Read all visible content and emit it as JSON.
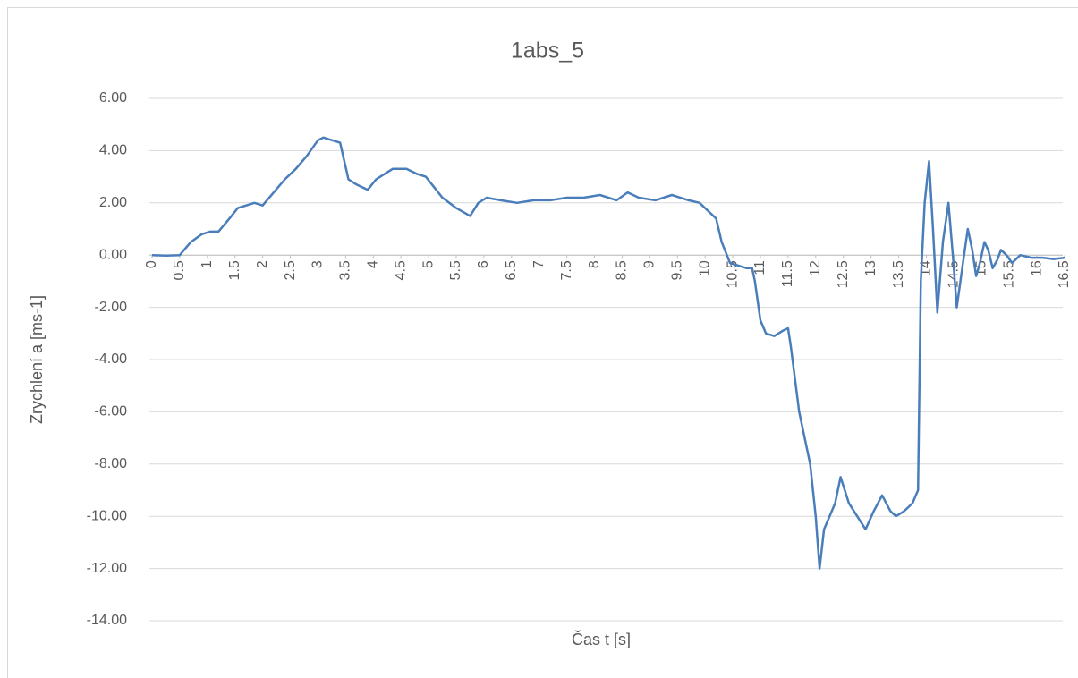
{
  "chart_data": {
    "type": "line",
    "title": "1abs_5",
    "x_label": "Čas t [s]",
    "y_label": "Zrychlení a [ms-1]",
    "xlim": [
      0,
      16.5
    ],
    "xticks": [
      0,
      0.5,
      1,
      1.5,
      2,
      2.5,
      3,
      3.5,
      4,
      4.5,
      5,
      5.5,
      6,
      6.5,
      7,
      7.5,
      8,
      8.5,
      9,
      9.5,
      10,
      10.5,
      11,
      11.5,
      12,
      12.5,
      13,
      13.5,
      14,
      14.5,
      15,
      15.5,
      16,
      16.5
    ],
    "ylim": [
      -14,
      6
    ],
    "yticks": [
      {
        "value": -14,
        "label": "-14.00"
      },
      {
        "value": -12,
        "label": "-12.00"
      },
      {
        "value": -10,
        "label": "-10.00"
      },
      {
        "value": -8,
        "label": "-8.00"
      },
      {
        "value": -6,
        "label": "-6.00"
      },
      {
        "value": -4,
        "label": "-4.00"
      },
      {
        "value": -2,
        "label": "-2.00"
      },
      {
        "value": 0,
        "label": "0.00"
      },
      {
        "value": 2,
        "label": "2.00"
      },
      {
        "value": 4,
        "label": "4.00"
      },
      {
        "value": 6,
        "label": "6.00"
      }
    ],
    "grid": true,
    "x": [
      0,
      0.25,
      0.5,
      0.7,
      0.9,
      1.05,
      1.2,
      1.4,
      1.55,
      1.7,
      1.85,
      2.0,
      2.2,
      2.4,
      2.6,
      2.8,
      3.0,
      3.1,
      3.25,
      3.4,
      3.55,
      3.7,
      3.9,
      4.05,
      4.2,
      4.35,
      4.6,
      4.8,
      4.95,
      5.1,
      5.25,
      5.5,
      5.75,
      5.9,
      6.05,
      6.3,
      6.6,
      6.9,
      7.2,
      7.5,
      7.8,
      8.1,
      8.4,
      8.6,
      8.8,
      9.1,
      9.4,
      9.7,
      9.9,
      10.05,
      10.2,
      10.3,
      10.45,
      10.6,
      10.75,
      10.85,
      10.9,
      11.0,
      11.1,
      11.25,
      11.4,
      11.5,
      11.55,
      11.7,
      11.9,
      12.0,
      12.07,
      12.15,
      12.25,
      12.35,
      12.45,
      12.6,
      12.75,
      12.9,
      13.05,
      13.2,
      13.35,
      13.45,
      13.6,
      13.75,
      13.85,
      13.9,
      13.97,
      14.05,
      14.12,
      14.2,
      14.3,
      14.4,
      14.48,
      14.55,
      14.65,
      14.75,
      14.83,
      14.9,
      14.97,
      15.05,
      15.12,
      15.2,
      15.28,
      15.35,
      15.45,
      15.55,
      15.7,
      15.9,
      16.1,
      16.3,
      16.5
    ],
    "series": [
      {
        "color": "#4a7ebb",
        "values": [
          0,
          -0.02,
          0,
          0.5,
          0.8,
          0.9,
          0.9,
          1.4,
          1.8,
          1.9,
          2.0,
          1.9,
          2.4,
          2.9,
          3.3,
          3.8,
          4.4,
          4.5,
          4.4,
          4.3,
          2.9,
          2.7,
          2.5,
          2.9,
          3.1,
          3.3,
          3.3,
          3.1,
          3.0,
          2.6,
          2.2,
          1.8,
          1.5,
          2.0,
          2.2,
          2.1,
          2.0,
          2.1,
          2.1,
          2.2,
          2.2,
          2.3,
          2.1,
          2.4,
          2.2,
          2.1,
          2.3,
          2.1,
          2.0,
          1.7,
          1.4,
          0.5,
          -0.3,
          -0.4,
          -0.5,
          -0.5,
          -1.0,
          -2.5,
          -3.0,
          -3.1,
          -2.9,
          -2.8,
          -3.5,
          -6.0,
          -8.0,
          -10.0,
          -12.0,
          -10.5,
          -10.0,
          -9.5,
          -8.5,
          -9.5,
          -10.0,
          -10.5,
          -9.8,
          -9.2,
          -9.8,
          -10.0,
          -9.8,
          -9.5,
          -9.0,
          -1.0,
          2.0,
          3.6,
          1.0,
          -2.2,
          0.5,
          2.0,
          0,
          -2.0,
          -0.5,
          1.0,
          0.2,
          -0.8,
          -0.3,
          0.5,
          0.2,
          -0.5,
          -0.2,
          0.2,
          0.0,
          -0.3,
          0,
          -0.1,
          -0.1,
          -0.15,
          -0.1
        ]
      }
    ]
  }
}
